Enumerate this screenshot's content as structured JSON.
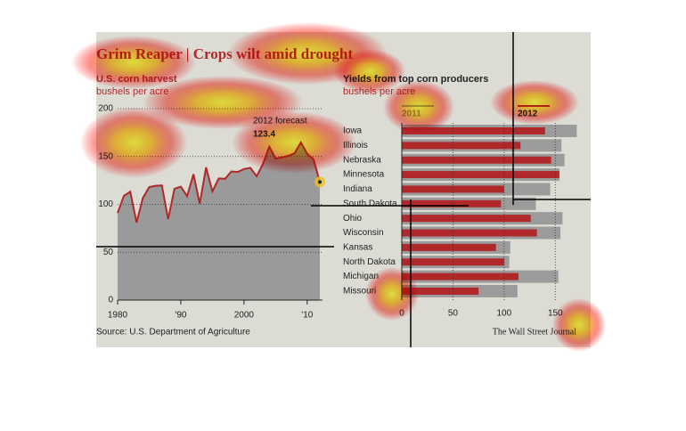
{
  "title": "Grim Reaper | Crops wilt amid drought",
  "source": "Source: U.S. Department of Agriculture",
  "credit": "The Wall Street Journal",
  "chart_data": [
    {
      "type": "area",
      "title": "U.S. corn harvest",
      "subtitle": "bushels per acre",
      "annotation": "2012 forecast",
      "x": [
        1980,
        1981,
        1982,
        1983,
        1984,
        1985,
        1986,
        1987,
        1988,
        1989,
        1990,
        1991,
        1992,
        1993,
        1994,
        1995,
        1996,
        1997,
        1998,
        1999,
        2000,
        2001,
        2002,
        2003,
        2004,
        2005,
        2006,
        2007,
        2008,
        2009,
        2010,
        2011,
        2012
      ],
      "series": [
        {
          "color": "#b0282a",
          "fill": "#9a9a9a",
          "values": [
            91,
            108.9,
            113.2,
            81.1,
            106.7,
            118,
            119.4,
            119.8,
            84.6,
            116.3,
            118.5,
            108.6,
            131.5,
            100.7,
            138.6,
            113.5,
            127.1,
            126.7,
            134.4,
            133.8,
            136.9,
            138.2,
            129.3,
            142.2,
            160.3,
            147.9,
            149.1,
            150.7,
            153.3,
            164.7,
            152.8,
            147.2,
            123.4
          ]
        }
      ],
      "xlim": [
        1980,
        2012
      ],
      "xticks": [
        1980,
        {
          "value": 1990,
          "label": "'90"
        },
        2000,
        {
          "value": 2010,
          "label": "'10"
        }
      ],
      "ylim": [
        0,
        200
      ],
      "yticks": [
        0,
        50,
        100,
        150,
        200
      ],
      "grid": true
    },
    {
      "type": "bar",
      "orientation": "horizontal",
      "title": "Yields from top corn producers",
      "subtitle": "bushels per acre",
      "categories": [
        "Iowa",
        "Illinois",
        "Nebraska",
        "Minnesota",
        "Indiana",
        "South Dakota",
        "Ohio",
        "Wisconsin",
        "Kansas",
        "North Dakota",
        "Michigan",
        "Missouri"
      ],
      "series": [
        {
          "name": "2011",
          "color": "#9b9b9b",
          "values": [
            171,
            156,
            159,
            154,
            145,
            131,
            157,
            155,
            106,
            105,
            153,
            113
          ]
        },
        {
          "name": "2012",
          "color": "#b0282a",
          "values": [
            140,
            116,
            146,
            154,
            100,
            97,
            126,
            132,
            92,
            100,
            114,
            75
          ]
        }
      ],
      "xlim": [
        0,
        175
      ],
      "xticks": [
        0,
        50,
        100,
        150
      ],
      "grid": true
    }
  ]
}
